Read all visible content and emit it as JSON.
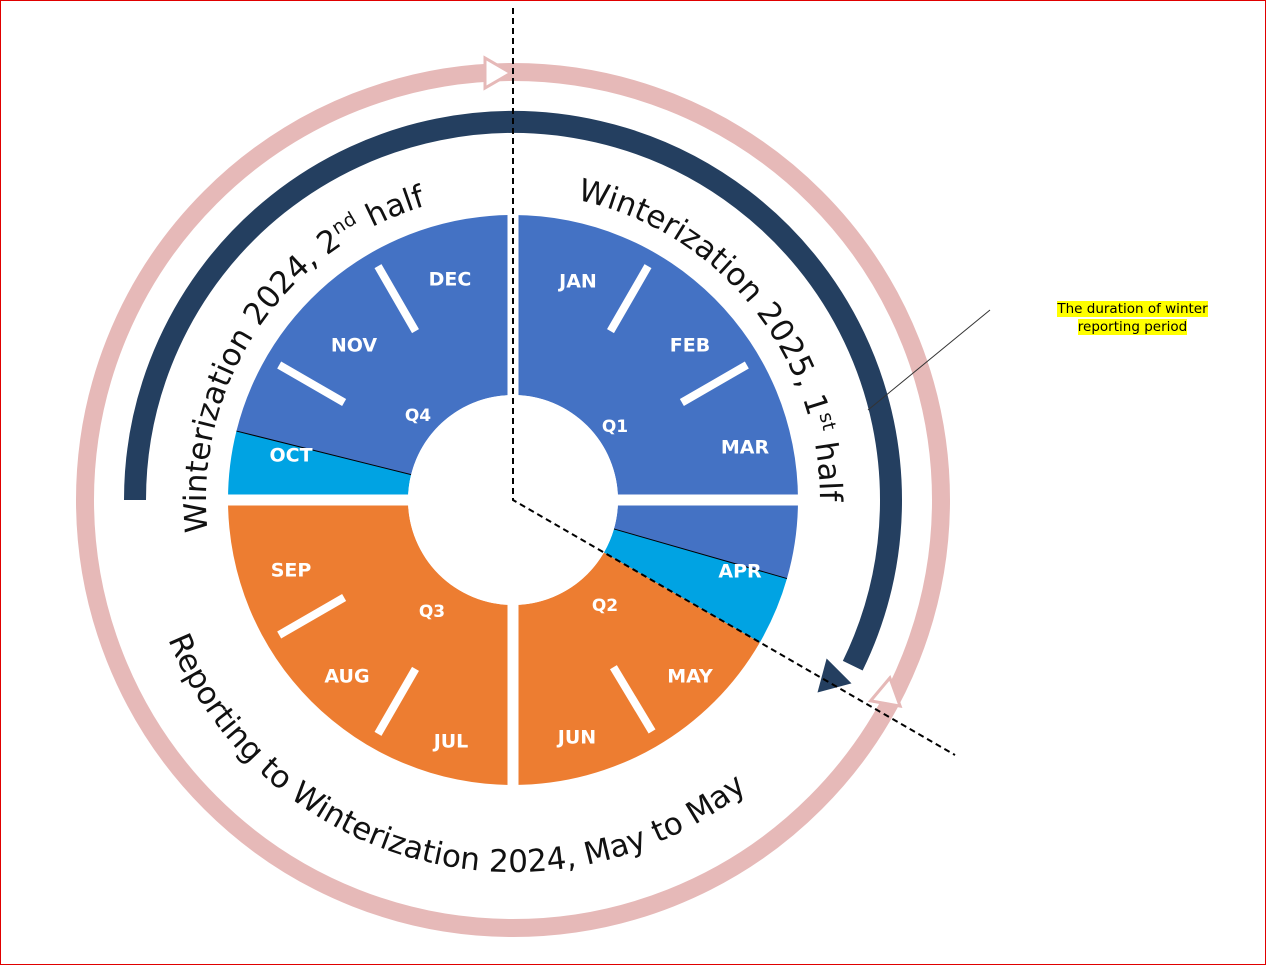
{
  "quarters": [
    {
      "label": "Q1",
      "months": [
        "JAN",
        "FEB",
        "MAR"
      ]
    },
    {
      "label": "Q2",
      "months": [
        "APR",
        "MAY",
        "JUN"
      ]
    },
    {
      "label": "Q3",
      "months": [
        "JUL",
        "AUG",
        "SEP"
      ]
    },
    {
      "label": "Q4",
      "months": [
        "OCT",
        "NOV",
        "DEC"
      ]
    }
  ],
  "arc_labels": {
    "winter_2024_second_half": [
      "Winterization 2024, 2",
      "nd",
      " half"
    ],
    "winter_2025_first_half": [
      "Winterization 2025, 1",
      "st",
      " half"
    ],
    "reporting_period": "Reporting to Winterization 2024, May to May"
  },
  "callout": [
    "The duration of winter",
    "reporting period"
  ]
}
